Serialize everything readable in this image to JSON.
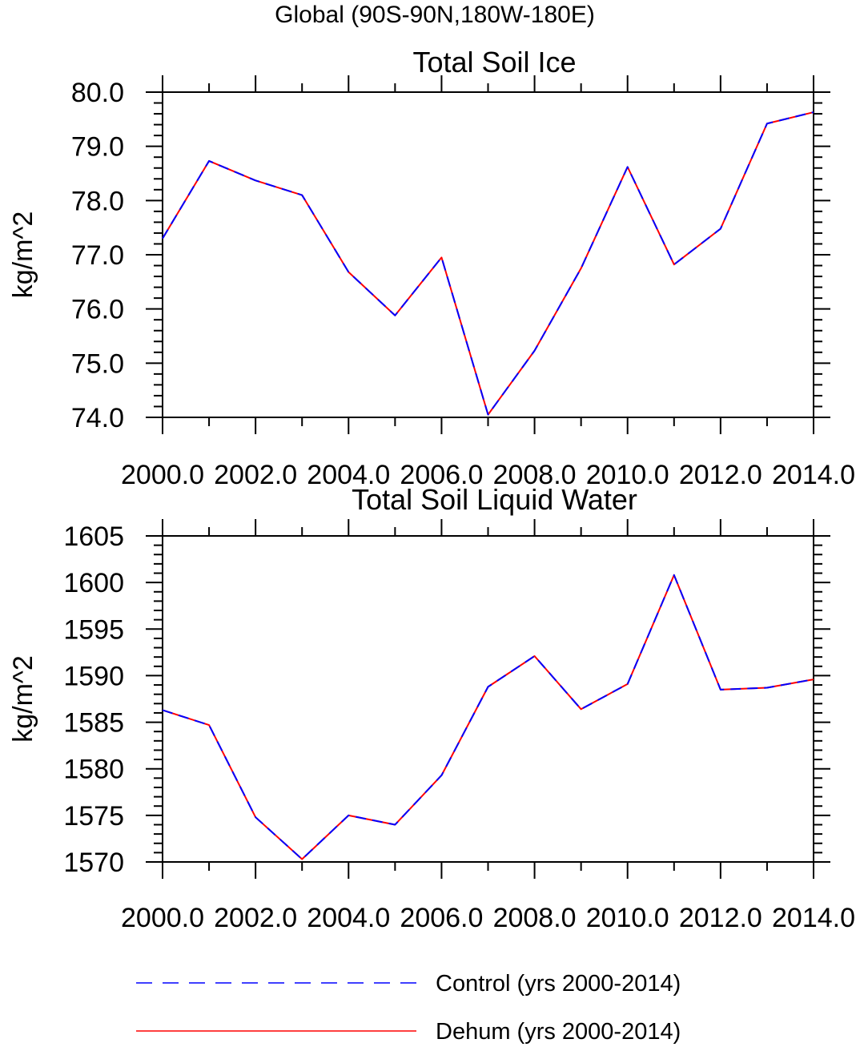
{
  "header": "Global (90S-90N,180W-180E)",
  "chart_data": [
    {
      "type": "line",
      "title": "Total Soil Ice",
      "xlabel": "",
      "ylabel": "kg/m^2",
      "xlim": [
        2000,
        2014
      ],
      "ylim": [
        74,
        80
      ],
      "xticks": [
        "2000.0",
        "2002.0",
        "2004.0",
        "2006.0",
        "2008.0",
        "2010.0",
        "2012.0",
        "2014.0"
      ],
      "yticks": [
        "74.0",
        "75.0",
        "76.0",
        "77.0",
        "78.0",
        "79.0",
        "80.0"
      ],
      "x": [
        2000,
        2001,
        2002,
        2003,
        2004,
        2005,
        2006,
        2007,
        2008,
        2009,
        2010,
        2011,
        2012,
        2013,
        2014
      ],
      "series": [
        {
          "name": "Control (yrs 2000-2014)",
          "color": "#0000ff",
          "style": "dashed",
          "values": [
            77.3,
            78.73,
            78.37,
            78.1,
            76.68,
            75.88,
            76.95,
            74.05,
            75.23,
            76.75,
            78.62,
            76.82,
            77.48,
            79.42,
            79.63
          ]
        },
        {
          "name": "Dehum (yrs 2000-2014)",
          "color": "#ff0000",
          "style": "solid",
          "values": [
            77.3,
            78.73,
            78.37,
            78.1,
            76.68,
            75.88,
            76.95,
            74.05,
            75.23,
            76.75,
            78.62,
            76.82,
            77.48,
            79.42,
            79.63
          ]
        }
      ]
    },
    {
      "type": "line",
      "title": "Total Soil Liquid Water",
      "xlabel": "",
      "ylabel": "kg/m^2",
      "xlim": [
        2000,
        2014
      ],
      "ylim": [
        1570,
        1605
      ],
      "xticks": [
        "2000.0",
        "2002.0",
        "2004.0",
        "2006.0",
        "2008.0",
        "2010.0",
        "2012.0",
        "2014.0"
      ],
      "yticks": [
        "1570",
        "1575",
        "1580",
        "1585",
        "1590",
        "1595",
        "1600",
        "1605"
      ],
      "x": [
        2000,
        2001,
        2002,
        2003,
        2004,
        2005,
        2006,
        2007,
        2008,
        2009,
        2010,
        2011,
        2012,
        2013,
        2014
      ],
      "series": [
        {
          "name": "Control (yrs 2000-2014)",
          "color": "#0000ff",
          "style": "dashed",
          "values": [
            1586.3,
            1584.7,
            1574.8,
            1570.3,
            1575.0,
            1574.0,
            1579.3,
            1588.8,
            1592.1,
            1586.4,
            1589.1,
            1600.8,
            1588.5,
            1588.7,
            1589.6
          ]
        },
        {
          "name": "Dehum (yrs 2000-2014)",
          "color": "#ff0000",
          "style": "solid",
          "values": [
            1586.3,
            1584.7,
            1574.8,
            1570.3,
            1575.0,
            1574.0,
            1579.3,
            1588.8,
            1592.1,
            1586.4,
            1589.1,
            1600.8,
            1588.5,
            1588.7,
            1589.6
          ]
        }
      ]
    }
  ],
  "legend": [
    {
      "label": "Control (yrs 2000-2014)",
      "color": "#0000ff",
      "style": "dashed"
    },
    {
      "label": "Dehum (yrs 2000-2014)",
      "color": "#ff0000",
      "style": "solid"
    }
  ]
}
